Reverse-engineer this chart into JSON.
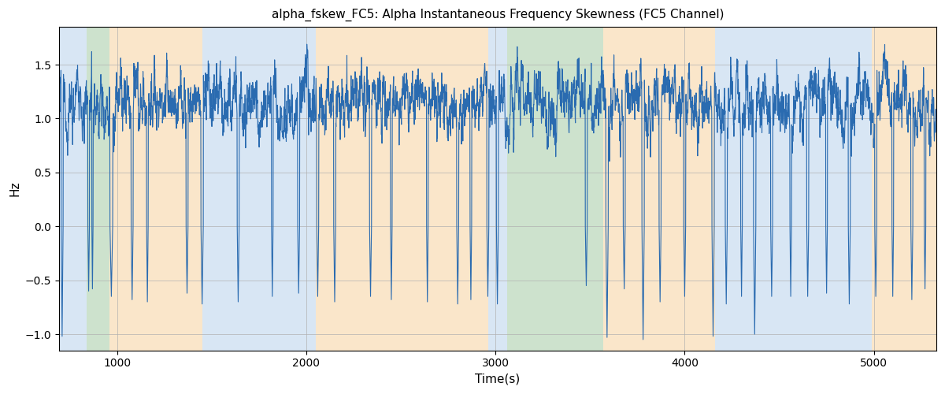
{
  "title": "alpha_fskew_FC5: Alpha Instantaneous Frequency Skewness (FC5 Channel)",
  "xlabel": "Time(s)",
  "ylabel": "Hz",
  "xlim": [
    693,
    5330
  ],
  "ylim": [
    -1.15,
    1.85
  ],
  "line_color": "#2a6bb0",
  "line_width": 0.8,
  "background_color": "#ffffff",
  "grid_color": "#b0b0b0",
  "colored_bands": [
    {
      "xmin": 693,
      "xmax": 840,
      "color": "#aac8e8",
      "alpha": 0.45
    },
    {
      "xmin": 840,
      "xmax": 960,
      "color": "#90c090",
      "alpha": 0.45
    },
    {
      "xmin": 960,
      "xmax": 1450,
      "color": "#f5c98a",
      "alpha": 0.45
    },
    {
      "xmin": 1450,
      "xmax": 2050,
      "color": "#aac8e8",
      "alpha": 0.45
    },
    {
      "xmin": 2050,
      "xmax": 2960,
      "color": "#f5c98a",
      "alpha": 0.45
    },
    {
      "xmin": 2960,
      "xmax": 3060,
      "color": "#aac8e8",
      "alpha": 0.45
    },
    {
      "xmin": 3060,
      "xmax": 3570,
      "color": "#90c090",
      "alpha": 0.45
    },
    {
      "xmin": 3570,
      "xmax": 4160,
      "color": "#f5c98a",
      "alpha": 0.45
    },
    {
      "xmin": 4160,
      "xmax": 4990,
      "color": "#aac8e8",
      "alpha": 0.45
    },
    {
      "xmin": 4990,
      "xmax": 5330,
      "color": "#f5c98a",
      "alpha": 0.45
    }
  ],
  "yticks": [
    -1.0,
    -0.5,
    0.0,
    0.5,
    1.0,
    1.5
  ],
  "xticks": [
    1000,
    2000,
    3000,
    4000,
    5000
  ],
  "figsize": [
    12.0,
    5.0
  ],
  "dpi": 100
}
